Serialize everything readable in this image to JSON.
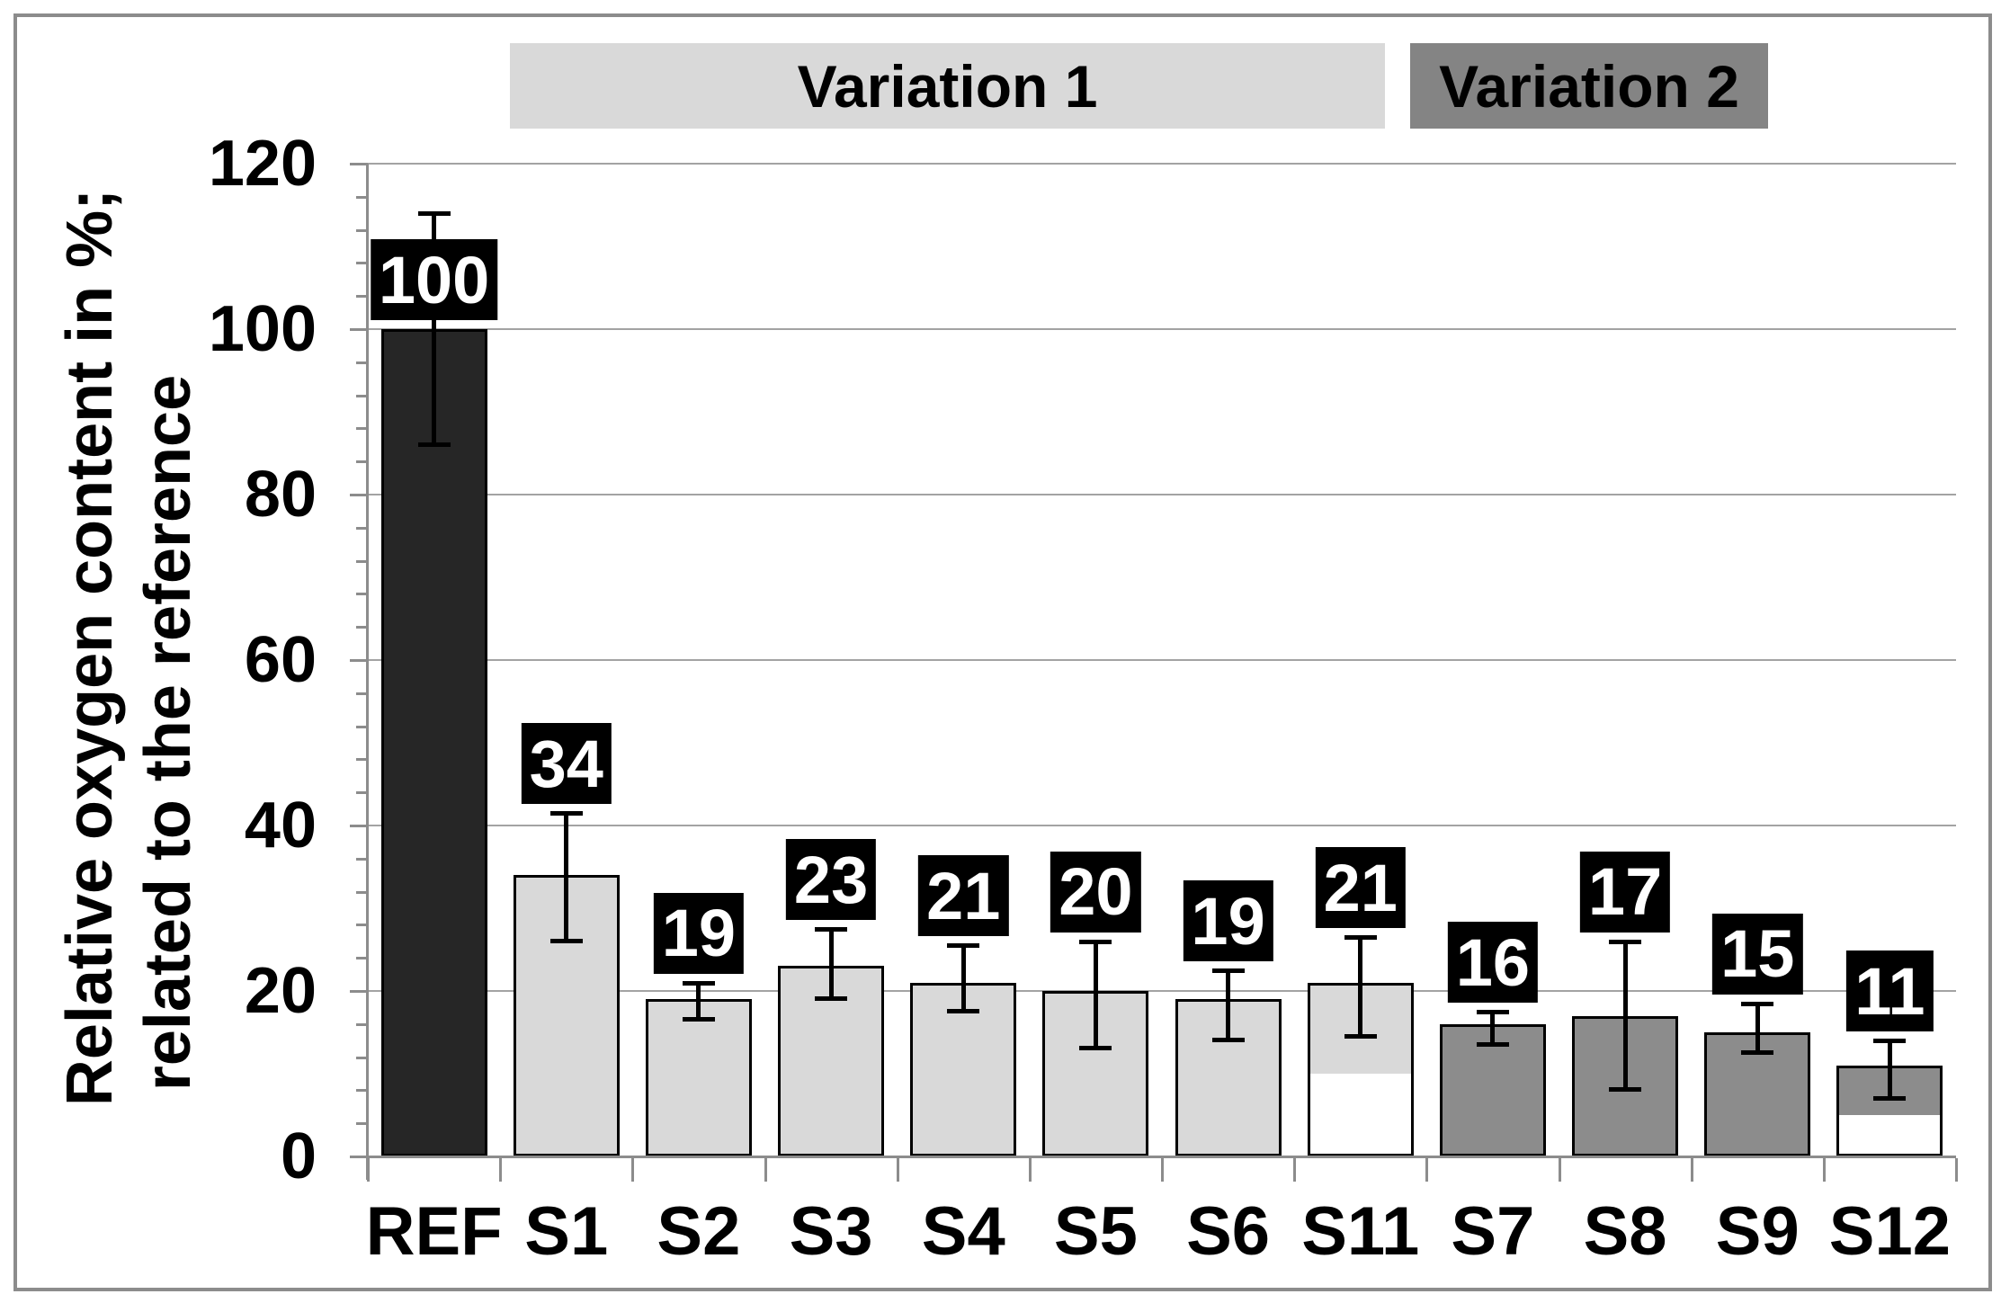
{
  "figure": {
    "border_color": "#8c8c8c",
    "background": "#ffffff"
  },
  "header": {
    "groups": [
      {
        "label": "Variation 1",
        "color": "#d9d9d9"
      },
      {
        "label": "Variation 2",
        "color": "#848484"
      }
    ]
  },
  "chart_data": {
    "type": "bar",
    "title": "",
    "ylabel_line1": "Relative oxygen content in %;",
    "ylabel_line2": "related to the reference",
    "ylabel": "Relative oxygen content in %; related to the reference",
    "xlabel": "",
    "ylim": [
      0,
      120
    ],
    "yticks": [
      0,
      20,
      40,
      60,
      80,
      100,
      120
    ],
    "y_minor_unit": 4,
    "grid": "horizontal",
    "legend": "none",
    "categories": [
      "REF",
      "S1",
      "S2",
      "S3",
      "S4",
      "S5",
      "S6",
      "S11",
      "S7",
      "S8",
      "S9",
      "S12"
    ],
    "values": [
      100,
      34,
      19,
      23,
      21,
      20,
      19,
      21,
      16,
      17,
      15,
      11
    ],
    "data_labels": [
      "100",
      "34",
      "19",
      "23",
      "21",
      "20",
      "19",
      "21",
      "16",
      "17",
      "15",
      "11"
    ],
    "error_low": [
      86,
      26,
      16.5,
      19,
      17.5,
      13,
      14,
      14.5,
      13.5,
      8,
      12.5,
      7
    ],
    "error_high": [
      114,
      41.5,
      21,
      27.5,
      25.5,
      26,
      22.5,
      26.5,
      17.5,
      26,
      18.5,
      14
    ],
    "white_lower_segments": [
      0,
      0,
      0,
      0,
      0,
      0,
      0,
      10,
      0,
      0,
      0,
      5
    ],
    "bar_fills": [
      "#262626",
      "#d9d9d9",
      "#d9d9d9",
      "#d9d9d9",
      "#d9d9d9",
      "#d9d9d9",
      "#d9d9d9",
      "#d9d9d9",
      "#8c8c8c",
      "#8c8c8c",
      "#8c8c8c",
      "#8c8c8c"
    ],
    "groups": [
      {
        "label": "Variation 1",
        "color": "#d9d9d9",
        "categories": [
          "S1",
          "S2",
          "S3",
          "S4",
          "S5",
          "S6",
          "S11"
        ]
      },
      {
        "label": "Variation 2",
        "color": "#848484",
        "categories": [
          "S7",
          "S8",
          "S9"
        ]
      }
    ],
    "label_box_style": {
      "background": "#000000",
      "text_color": "#ffffff"
    }
  }
}
